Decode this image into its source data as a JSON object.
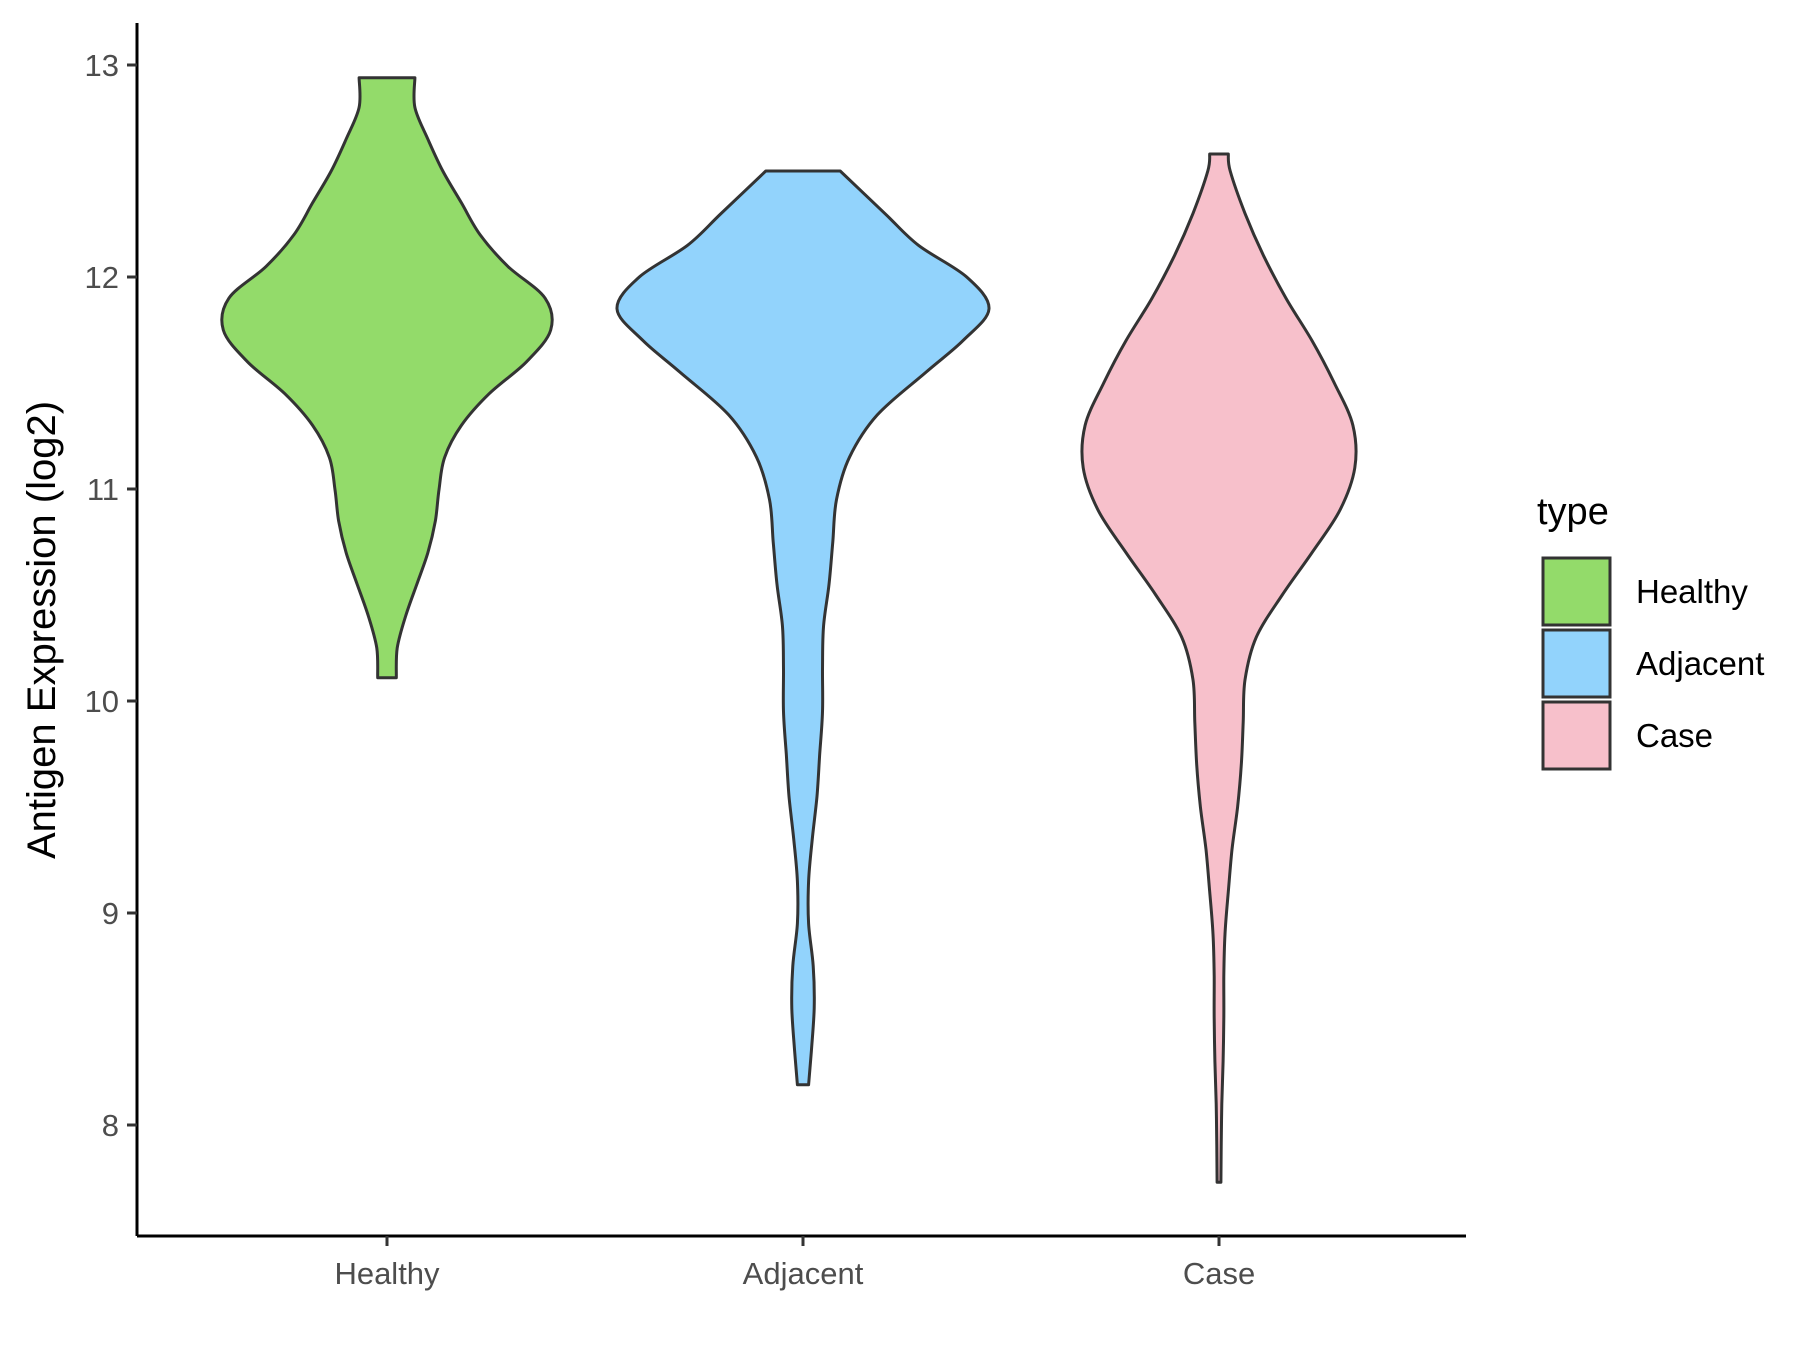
{
  "chart_data": {
    "type": "violin",
    "title": "",
    "xlabel": "",
    "ylabel": "Antigen Expression (log2)",
    "ylim": [
      7.5,
      13.2
    ],
    "yticks": [
      8,
      9,
      10,
      11,
      12,
      13
    ],
    "categories": [
      "Healthy",
      "Adjacent",
      "Case"
    ],
    "grid": false,
    "legend": {
      "title": "type",
      "placement": "right",
      "entries": [
        "Healthy",
        "Adjacent",
        "Case"
      ]
    },
    "series": [
      {
        "name": "Healthy",
        "color": "#93DB6A",
        "min": 10.11,
        "max": 12.94,
        "density": [
          [
            10.11,
            0.05
          ],
          [
            10.25,
            0.055
          ],
          [
            10.4,
            0.1
          ],
          [
            10.55,
            0.16
          ],
          [
            10.7,
            0.22
          ],
          [
            10.85,
            0.26
          ],
          [
            11.0,
            0.28
          ],
          [
            11.15,
            0.31
          ],
          [
            11.3,
            0.4
          ],
          [
            11.45,
            0.55
          ],
          [
            11.6,
            0.75
          ],
          [
            11.75,
            0.88
          ],
          [
            11.9,
            0.85
          ],
          [
            12.05,
            0.65
          ],
          [
            12.2,
            0.5
          ],
          [
            12.35,
            0.4
          ],
          [
            12.5,
            0.3
          ],
          [
            12.65,
            0.22
          ],
          [
            12.8,
            0.15
          ],
          [
            12.94,
            0.15
          ]
        ]
      },
      {
        "name": "Adjacent",
        "color": "#92D3FC",
        "min": 8.19,
        "max": 12.5,
        "density": [
          [
            8.19,
            0.03
          ],
          [
            8.35,
            0.045
          ],
          [
            8.55,
            0.06
          ],
          [
            8.75,
            0.055
          ],
          [
            8.95,
            0.03
          ],
          [
            9.15,
            0.03
          ],
          [
            9.35,
            0.05
          ],
          [
            9.55,
            0.075
          ],
          [
            9.75,
            0.09
          ],
          [
            9.95,
            0.105
          ],
          [
            10.15,
            0.105
          ],
          [
            10.35,
            0.11
          ],
          [
            10.55,
            0.14
          ],
          [
            10.75,
            0.16
          ],
          [
            10.95,
            0.18
          ],
          [
            11.15,
            0.25
          ],
          [
            11.35,
            0.4
          ],
          [
            11.55,
            0.66
          ],
          [
            11.7,
            0.86
          ],
          [
            11.85,
            1.0
          ],
          [
            12.0,
            0.88
          ],
          [
            12.15,
            0.62
          ],
          [
            12.3,
            0.44
          ],
          [
            12.5,
            0.2
          ]
        ]
      },
      {
        "name": "Case",
        "color": "#F7C0CB",
        "min": 7.73,
        "max": 12.58,
        "density": [
          [
            7.73,
            0.01
          ],
          [
            7.9,
            0.012
          ],
          [
            8.1,
            0.015
          ],
          [
            8.3,
            0.022
          ],
          [
            8.5,
            0.026
          ],
          [
            8.7,
            0.026
          ],
          [
            8.9,
            0.032
          ],
          [
            9.1,
            0.05
          ],
          [
            9.3,
            0.07
          ],
          [
            9.5,
            0.1
          ],
          [
            9.7,
            0.12
          ],
          [
            9.9,
            0.13
          ],
          [
            10.1,
            0.14
          ],
          [
            10.3,
            0.2
          ],
          [
            10.5,
            0.34
          ],
          [
            10.7,
            0.5
          ],
          [
            10.9,
            0.65
          ],
          [
            11.1,
            0.73
          ],
          [
            11.3,
            0.72
          ],
          [
            11.5,
            0.62
          ],
          [
            11.7,
            0.5
          ],
          [
            11.9,
            0.36
          ],
          [
            12.1,
            0.24
          ],
          [
            12.3,
            0.14
          ],
          [
            12.5,
            0.06
          ],
          [
            12.58,
            0.05
          ]
        ]
      }
    ]
  }
}
